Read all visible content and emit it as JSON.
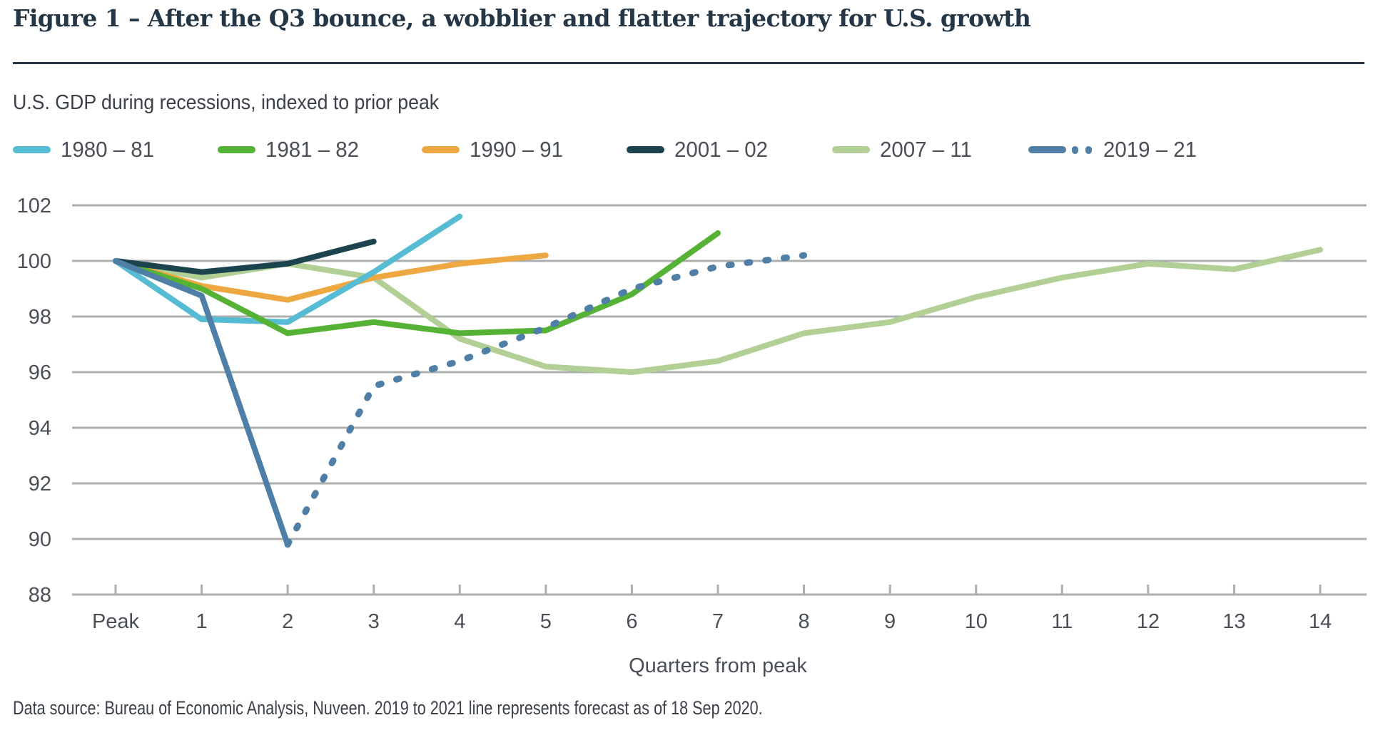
{
  "figure": {
    "title": "Figure 1 – After the Q3 bounce, a wobblier and flatter trajectory for U.S. growth",
    "subtitle": "U.S. GDP during recessions, indexed to prior peak",
    "footnote": "Data source: Bureau of Economic Analysis, Nuveen. 2019 to 2021 line represents forecast as of 18 Sep 2020."
  },
  "chart_data": {
    "type": "line",
    "title": "U.S. GDP during recessions, indexed to prior peak",
    "xlabel": "Quarters from peak",
    "ylabel": "",
    "categories": [
      "Peak",
      "1",
      "2",
      "3",
      "4",
      "5",
      "6",
      "7",
      "8",
      "9",
      "10",
      "11",
      "12",
      "13",
      "14"
    ],
    "ylim": [
      88,
      102
    ],
    "yticks": [
      102,
      100,
      98,
      96,
      94,
      92,
      90,
      88
    ],
    "grid": true,
    "legend_position": "top-left",
    "series": [
      {
        "name": "1980 – 81",
        "color": "#55bcd3",
        "style": "solid",
        "values": [
          100,
          97.9,
          97.8,
          99.6,
          101.6
        ]
      },
      {
        "name": "1981 – 82",
        "color": "#55b234",
        "style": "solid",
        "values": [
          100,
          99.0,
          97.4,
          97.8,
          97.4,
          97.5,
          98.8,
          101.0
        ]
      },
      {
        "name": "1990 – 91",
        "color": "#eda841",
        "style": "solid",
        "values": [
          100,
          99.1,
          98.6,
          99.4,
          99.9,
          100.2
        ]
      },
      {
        "name": "2001 – 02",
        "color": "#1c444f",
        "style": "solid",
        "values": [
          100,
          99.6,
          99.9,
          100.7
        ]
      },
      {
        "name": "2007 – 11",
        "color": "#b2cf95",
        "style": "solid",
        "values": [
          100,
          99.4,
          99.9,
          99.4,
          97.2,
          96.2,
          96.0,
          96.4,
          97.4,
          97.8,
          98.7,
          99.4,
          99.9,
          99.7,
          100.4
        ]
      },
      {
        "name": "2019 – 21",
        "color": "#4f7fa6",
        "style": "solid-then-dotted",
        "values": [
          100,
          98.75,
          89.8
        ],
        "forecast_values": [
          null,
          null,
          89.8,
          95.5,
          96.4,
          97.6,
          99.0,
          99.8,
          100.2
        ]
      }
    ]
  }
}
